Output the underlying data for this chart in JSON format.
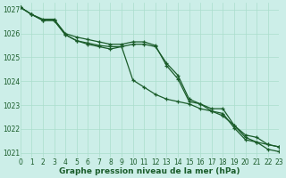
{
  "title": "Graphe pression niveau de la mer (hPa)",
  "background_color": "#cceee8",
  "grid_color": "#aaddcc",
  "line_color": "#1a5c2a",
  "xlim": [
    0,
    23
  ],
  "ylim": [
    1020.8,
    1027.3
  ],
  "yticks": [
    1021,
    1022,
    1023,
    1024,
    1025,
    1026,
    1027
  ],
  "xticks": [
    0,
    1,
    2,
    3,
    4,
    5,
    6,
    7,
    8,
    9,
    10,
    11,
    12,
    13,
    14,
    15,
    16,
    17,
    18,
    19,
    20,
    21,
    22,
    23
  ],
  "series1": [
    1027.1,
    1026.8,
    1026.6,
    1026.6,
    1026.0,
    1025.85,
    1025.75,
    1025.65,
    1025.55,
    1025.55,
    1025.65,
    1025.65,
    1025.5,
    1024.65,
    1024.1,
    1023.15,
    1023.05,
    1022.85,
    1022.85,
    1022.15,
    1021.65,
    1021.45,
    1021.35,
    1021.25
  ],
  "series2": [
    1027.1,
    1026.8,
    1026.55,
    1026.55,
    1025.95,
    1025.7,
    1025.55,
    1025.45,
    1025.35,
    1025.45,
    1024.05,
    1023.75,
    1023.45,
    1023.25,
    1023.15,
    1023.05,
    1022.85,
    1022.75,
    1022.55,
    1022.15,
    1021.75,
    1021.65,
    1021.35,
    1021.25
  ],
  "series3": [
    1027.1,
    1026.8,
    1026.55,
    1026.55,
    1025.95,
    1025.7,
    1025.6,
    1025.5,
    1025.45,
    1025.45,
    1025.55,
    1025.55,
    1025.45,
    1024.75,
    1024.25,
    1023.25,
    1023.05,
    1022.75,
    1022.65,
    1022.05,
    1021.55,
    1021.45,
    1021.15,
    1021.05
  ],
  "tick_fontsize": 5.5,
  "label_fontsize": 6.5,
  "linewidth": 0.9,
  "markersize": 2.5
}
